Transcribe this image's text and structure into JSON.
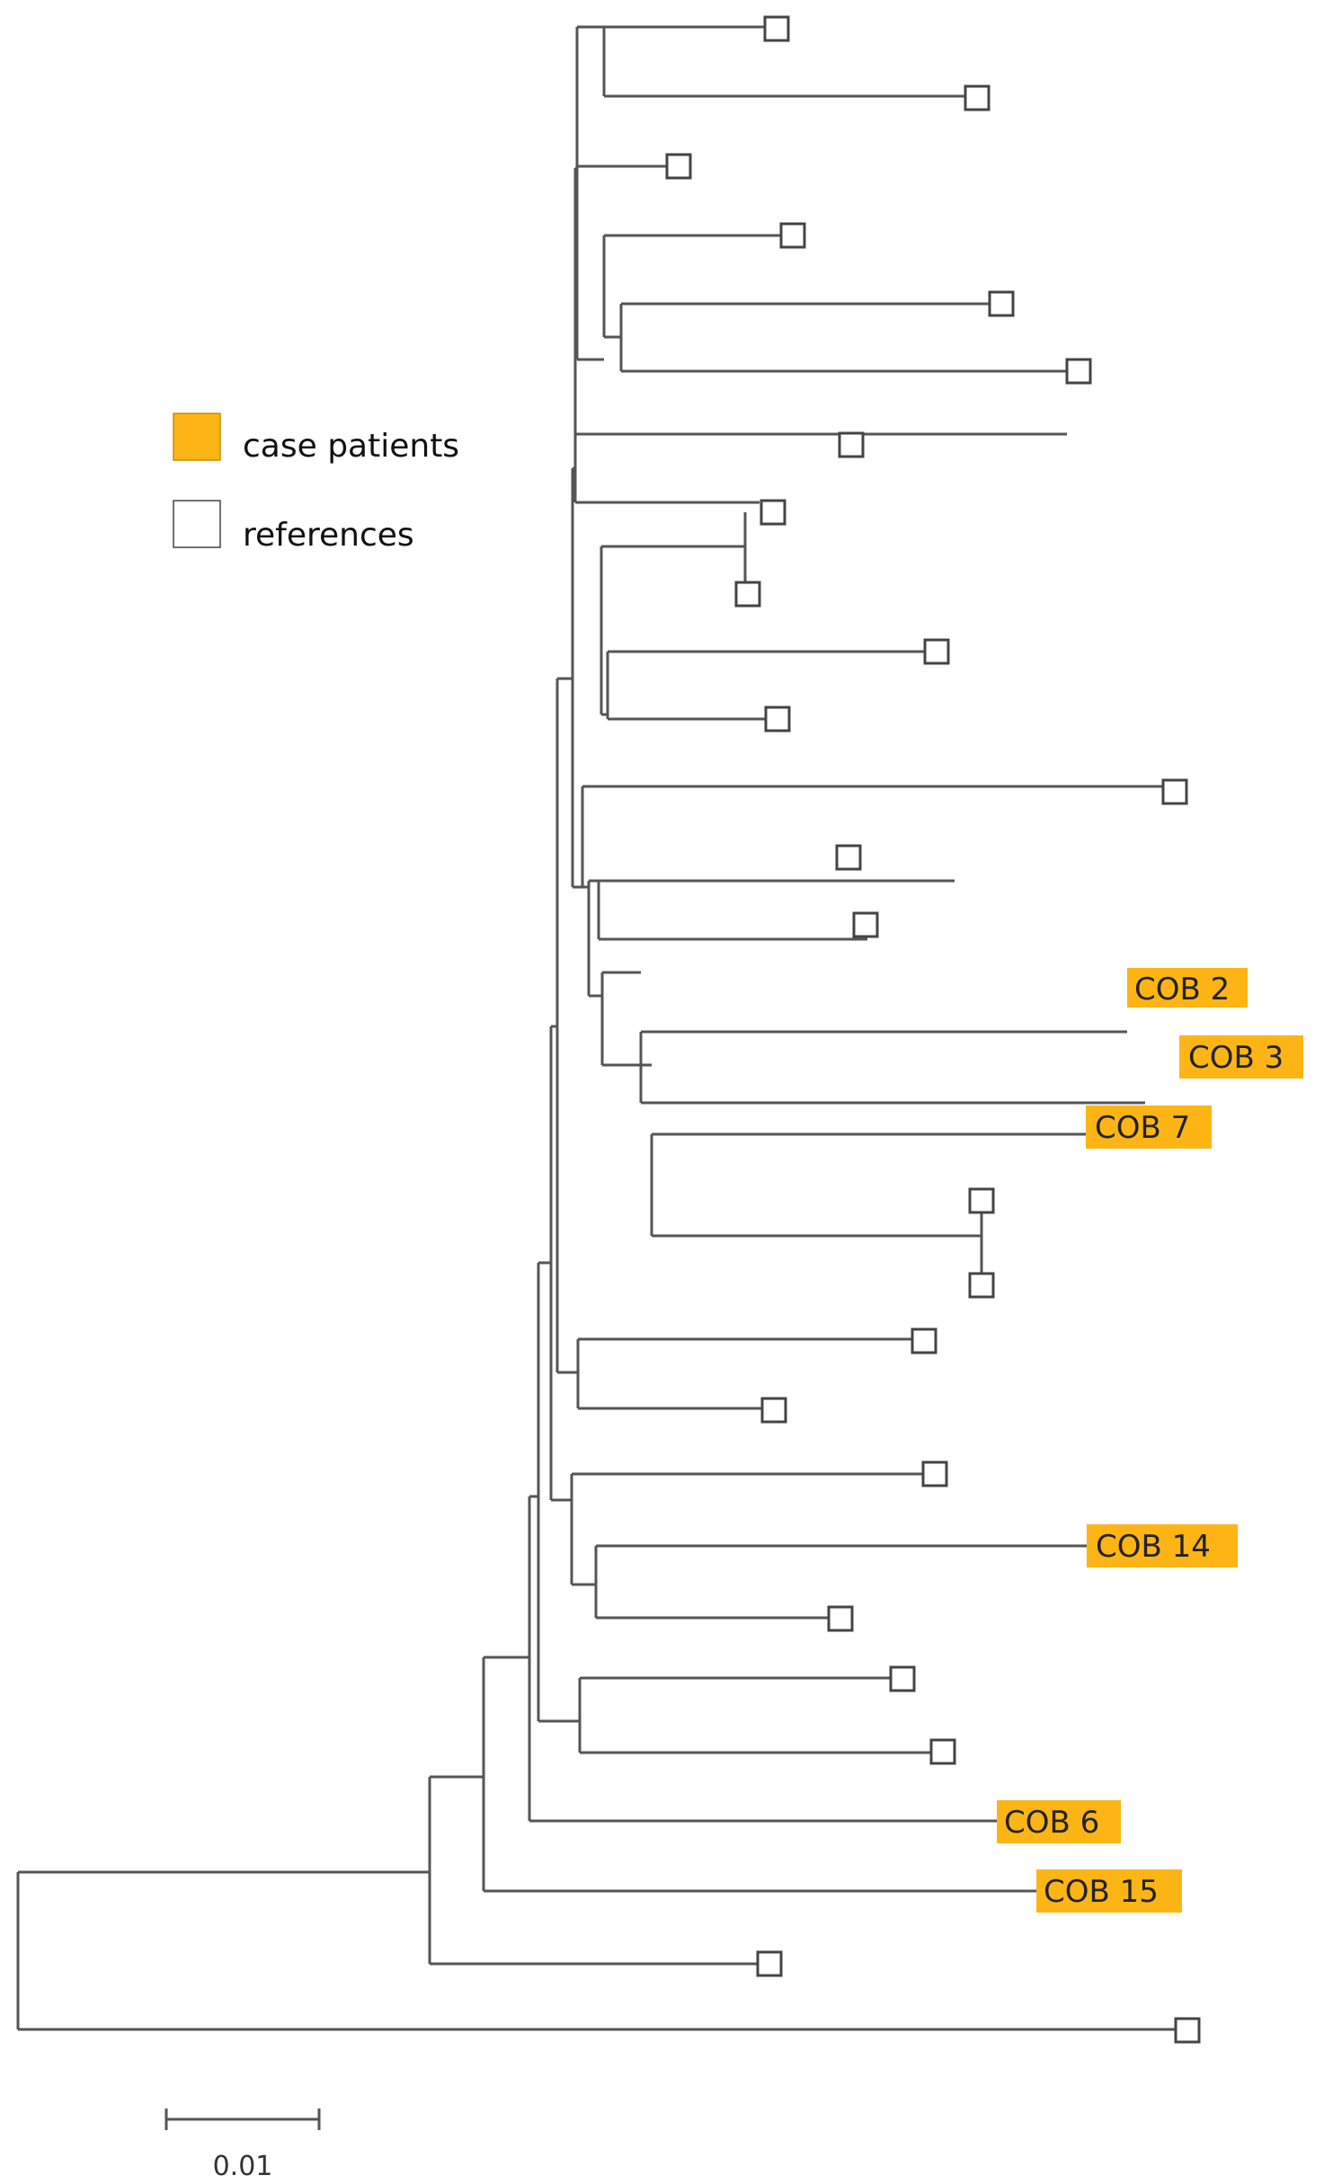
{
  "legend": {
    "items": [
      {
        "label": "case patients",
        "color": "#FDB515"
      },
      {
        "label": "references",
        "color": "#FFFFFF"
      }
    ]
  },
  "case_labels": [
    "COB 2",
    "COB 3",
    "COB 7",
    "COB 14",
    "COB 6",
    "COB 15"
  ],
  "scale_bar": {
    "label": "0.01"
  },
  "colors": {
    "line": "#555555",
    "case": "#FDB515",
    "leaf_border": "#444444"
  }
}
